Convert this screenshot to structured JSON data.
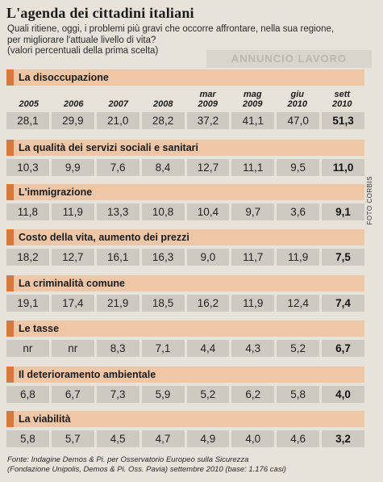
{
  "title": "L'agenda dei cittadini italiani",
  "subtitle_lines": [
    "Quali ritiene, oggi, i problemi più gravi che occorre affrontare, nella sua regione,",
    "per migliorare l'attuale livello di vita?",
    "(valori percentuali della prima scelta)"
  ],
  "background_text": "ANNUNCIO LAVORO",
  "photo_credit": "FOTO CORBIS",
  "footer_lines": [
    "Fonte: Indagine Demos & Pi. per Osservatorio Europeo sulla Sicurezza",
    "(Fondazione Unipolis, Demos & Pi. Oss. Pavia) settembre 2010 (base: 1.176 casi)"
  ],
  "colors": {
    "bar": "#f0c7a6",
    "tab": "#d47a3f",
    "cell": "#cfcac1",
    "background": "#e7e3da"
  },
  "chart_data": {
    "type": "table",
    "columns": [
      {
        "top": "",
        "bottom": "2005"
      },
      {
        "top": "",
        "bottom": "2006"
      },
      {
        "top": "",
        "bottom": "2007"
      },
      {
        "top": "",
        "bottom": "2008"
      },
      {
        "top": "mar",
        "bottom": "2009"
      },
      {
        "top": "mag",
        "bottom": "2009"
      },
      {
        "top": "giu",
        "bottom": "2010"
      },
      {
        "top": "sett",
        "bottom": "2010"
      }
    ],
    "rows": [
      {
        "label": "La disoccupazione",
        "values": [
          "28,1",
          "29,9",
          "21,0",
          "28,2",
          "37,2",
          "41,1",
          "47,0",
          "51,3"
        ]
      },
      {
        "label": "La qualità dei servizi sociali e sanitari",
        "values": [
          "10,3",
          "9,9",
          "7,6",
          "8,4",
          "12,7",
          "11,1",
          "9,5",
          "11,0"
        ]
      },
      {
        "label": "L'immigrazione",
        "values": [
          "11,8",
          "11,9",
          "13,3",
          "10,8",
          "10,4",
          "9,7",
          "3,6",
          "9,1"
        ]
      },
      {
        "label": "Costo della vita, aumento dei prezzi",
        "values": [
          "18,2",
          "12,7",
          "16,1",
          "16,3",
          "9,0",
          "11,7",
          "11,9",
          "7,5"
        ]
      },
      {
        "label": "La criminalità comune",
        "values": [
          "19,1",
          "17,4",
          "21,9",
          "18,5",
          "16,2",
          "11,9",
          "12,4",
          "7,4"
        ]
      },
      {
        "label": "Le tasse",
        "values": [
          "nr",
          "nr",
          "8,3",
          "7,1",
          "4,4",
          "4,3",
          "5,2",
          "6,7"
        ]
      },
      {
        "label": "Il deterioramento ambientale",
        "values": [
          "6,8",
          "6,7",
          "7,3",
          "5,9",
          "5,2",
          "6,2",
          "5,8",
          "4,0"
        ]
      },
      {
        "label": "La viabilità",
        "values": [
          "5,8",
          "5,7",
          "4,5",
          "4,7",
          "4,9",
          "4,0",
          "4,6",
          "3,2"
        ]
      }
    ]
  }
}
